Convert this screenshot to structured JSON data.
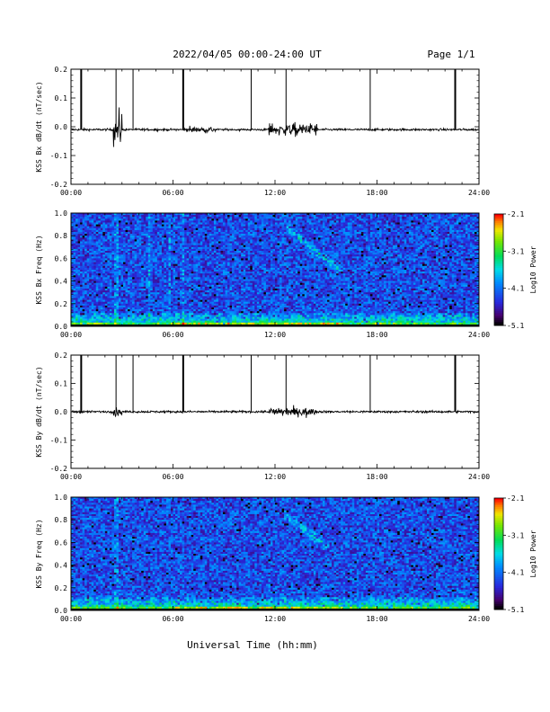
{
  "header": {
    "date_range": "2022/04/05  00:00-24:00 UT",
    "page": "Page 1/1"
  },
  "footer": {
    "xlabel": "Universal Time (hh:mm)"
  },
  "chart_data": [
    {
      "type": "line",
      "id": "bx_ts",
      "ylabel": "KSS Bx dB/dt (nT/sec)",
      "xlim": [
        0,
        24
      ],
      "ylim": [
        -0.2,
        0.2
      ],
      "xticks": [
        "00:00",
        "06:00",
        "12:00",
        "18:00",
        "24:00"
      ],
      "yticks": [
        "0.2",
        "0.1",
        "0.0",
        "-0.1",
        "-0.2"
      ],
      "baseline": -0.01,
      "spikes_hours": [
        0.6,
        2.65,
        3.65,
        6.6,
        10.6,
        12.65,
        17.6,
        22.6
      ],
      "noise_bursts": [
        {
          "start": 2.5,
          "end": 3.0,
          "amp": 0.05
        },
        {
          "start": 6.8,
          "end": 8.5,
          "amp": 0.01
        },
        {
          "start": 11.6,
          "end": 14.5,
          "amp": 0.02
        }
      ]
    },
    {
      "type": "heatmap",
      "id": "bx_spec",
      "ylabel": "KSS Bx Freq (Hz)",
      "xlim": [
        0,
        24
      ],
      "ylim": [
        0,
        1.0
      ],
      "xticks": [
        "00:00",
        "06:00",
        "12:00",
        "18:00",
        "24:00"
      ],
      "yticks": [
        "1.0",
        "0.8",
        "0.6",
        "0.4",
        "0.2",
        "0.0"
      ],
      "colorbar": {
        "label": "Log10 Power",
        "range": [
          -5.1,
          -2.1
        ],
        "ticks": [
          "-2.1",
          "-3.1",
          "-4.1",
          "-5.1"
        ]
      },
      "features": {
        "rising_tone": {
          "t_start": 12.7,
          "t_end": 15.8,
          "f_start": 0.86,
          "f_end": 0.5
        },
        "vertical_streaks_hours": [
          2.65,
          4.6,
          5.8,
          6.6
        ]
      }
    },
    {
      "type": "line",
      "id": "by_ts",
      "ylabel": "KSS By dB/dt (nT/sec)",
      "xlim": [
        0,
        24
      ],
      "ylim": [
        -0.2,
        0.2
      ],
      "xticks": [
        "00:00",
        "06:00",
        "12:00",
        "18:00",
        "24:00"
      ],
      "yticks": [
        "0.2",
        "0.1",
        "0.0",
        "-0.1",
        "-0.2"
      ],
      "baseline": 0.0,
      "spikes_hours": [
        0.6,
        2.65,
        3.65,
        6.6,
        10.6,
        12.65,
        17.6,
        22.6
      ],
      "noise_bursts": [
        {
          "start": 2.5,
          "end": 3.0,
          "amp": 0.02
        },
        {
          "start": 11.6,
          "end": 14.5,
          "amp": 0.015
        }
      ]
    },
    {
      "type": "heatmap",
      "id": "by_spec",
      "ylabel": "KSS By Freq (Hz)",
      "xlim": [
        0,
        24
      ],
      "ylim": [
        0,
        1.0
      ],
      "xticks": [
        "00:00",
        "06:00",
        "12:00",
        "18:00",
        "24:00"
      ],
      "yticks": [
        "1.0",
        "0.8",
        "0.6",
        "0.4",
        "0.2",
        "0.0"
      ],
      "colorbar": {
        "label": "Log10 Power",
        "range": [
          -5.1,
          -2.1
        ],
        "ticks": [
          "-2.1",
          "-3.1",
          "-4.1",
          "-5.1"
        ]
      },
      "features": {
        "rising_tone": {
          "t_start": 12.5,
          "t_end": 15.2,
          "f_start": 0.85,
          "f_end": 0.55
        },
        "vertical_streaks_hours": [
          2.65
        ]
      }
    }
  ]
}
